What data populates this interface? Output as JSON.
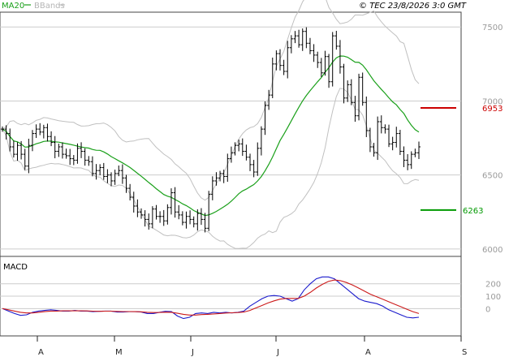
{
  "header": {
    "ma_label": "MA20",
    "bb_label": "BBands",
    "copyright": "© TEC 23/8/2026 3:0 GMT"
  },
  "colors": {
    "ma": "#1aa01a",
    "bbands": "#c0c0c0",
    "price": "#000000",
    "resistance": "#cc0000",
    "support": "#009900",
    "macd": "#1a1acc",
    "signal": "#cc1a1a",
    "grid": "#cccccc"
  },
  "chart_data": [
    {
      "type": "ohlc",
      "ylim": [
        5950,
        7600
      ],
      "yticks": [
        "7500",
        "7000",
        "6500",
        "6000"
      ],
      "xticks": [
        "A",
        "M",
        "J",
        "J",
        "A",
        "S"
      ],
      "levels": {
        "resistance": {
          "value": 6953,
          "label": "6953"
        },
        "support": {
          "value": 6263,
          "label": "6263"
        }
      },
      "close": [
        6810,
        6780,
        6690,
        6640,
        6700,
        6640,
        6560,
        6700,
        6780,
        6810,
        6790,
        6820,
        6760,
        6720,
        6660,
        6690,
        6640,
        6630,
        6610,
        6600,
        6680,
        6660,
        6600,
        6590,
        6510,
        6530,
        6550,
        6490,
        6500,
        6460,
        6510,
        6530,
        6480,
        6410,
        6350,
        6290,
        6250,
        6230,
        6200,
        6170,
        6270,
        6220,
        6220,
        6190,
        6280,
        6380,
        6250,
        6230,
        6180,
        6220,
        6200,
        6170,
        6240,
        6200,
        6140,
        6370,
        6460,
        6480,
        6510,
        6490,
        6610,
        6650,
        6700,
        6710,
        6660,
        6620,
        6570,
        6520,
        6680,
        6810,
        6970,
        7040,
        7250,
        7320,
        7240,
        7200,
        7360,
        7420,
        7440,
        7380,
        7470,
        7390,
        7340,
        7310,
        7260,
        7190,
        7300,
        7130,
        7440,
        7370,
        7230,
        7020,
        7110,
        6990,
        6900,
        7160,
        6990,
        6800,
        6690,
        6650,
        6860,
        6820,
        6810,
        6710,
        6720,
        6780,
        6660,
        6600,
        6570,
        6640,
        6650,
        6690
      ]
    },
    {
      "type": "line",
      "title": "MACD",
      "ylim": [
        -220,
        420
      ],
      "yticks": [
        "200",
        "100",
        "0"
      ],
      "series": [
        {
          "name": "MACD",
          "values": [
            0,
            -20,
            -40,
            -55,
            -50,
            -30,
            -20,
            -15,
            -10,
            -15,
            -20,
            -20,
            -15,
            -20,
            -20,
            -25,
            -22,
            -20,
            -20,
            -28,
            -28,
            -25,
            -25,
            -28,
            -40,
            -40,
            -30,
            -22,
            -25,
            -60,
            -80,
            -70,
            -40,
            -35,
            -40,
            -30,
            -35,
            -30,
            -35,
            -30,
            -20,
            20,
            50,
            80,
            100,
            105,
            100,
            80,
            60,
            80,
            150,
            200,
            240,
            255,
            255,
            240,
            200,
            160,
            120,
            80,
            60,
            50,
            40,
            20,
            -10,
            -30,
            -50,
            -70,
            -75,
            -70
          ]
        },
        {
          "name": "Signal",
          "values": [
            0,
            -10,
            -20,
            -30,
            -35,
            -35,
            -30,
            -25,
            -20,
            -20,
            -18,
            -18,
            -18,
            -18,
            -19,
            -21,
            -22,
            -21,
            -21,
            -23,
            -24,
            -24,
            -25,
            -26,
            -30,
            -32,
            -31,
            -29,
            -30,
            -38,
            -46,
            -52,
            -52,
            -48,
            -46,
            -43,
            -40,
            -36,
            -34,
            -32,
            -28,
            -15,
            5,
            25,
            45,
            62,
            76,
            82,
            82,
            82,
            100,
            130,
            165,
            195,
            218,
            230,
            225,
            210,
            190,
            165,
            140,
            115,
            95,
            75,
            55,
            35,
            15,
            -5,
            -25,
            -40
          ]
        }
      ]
    }
  ]
}
